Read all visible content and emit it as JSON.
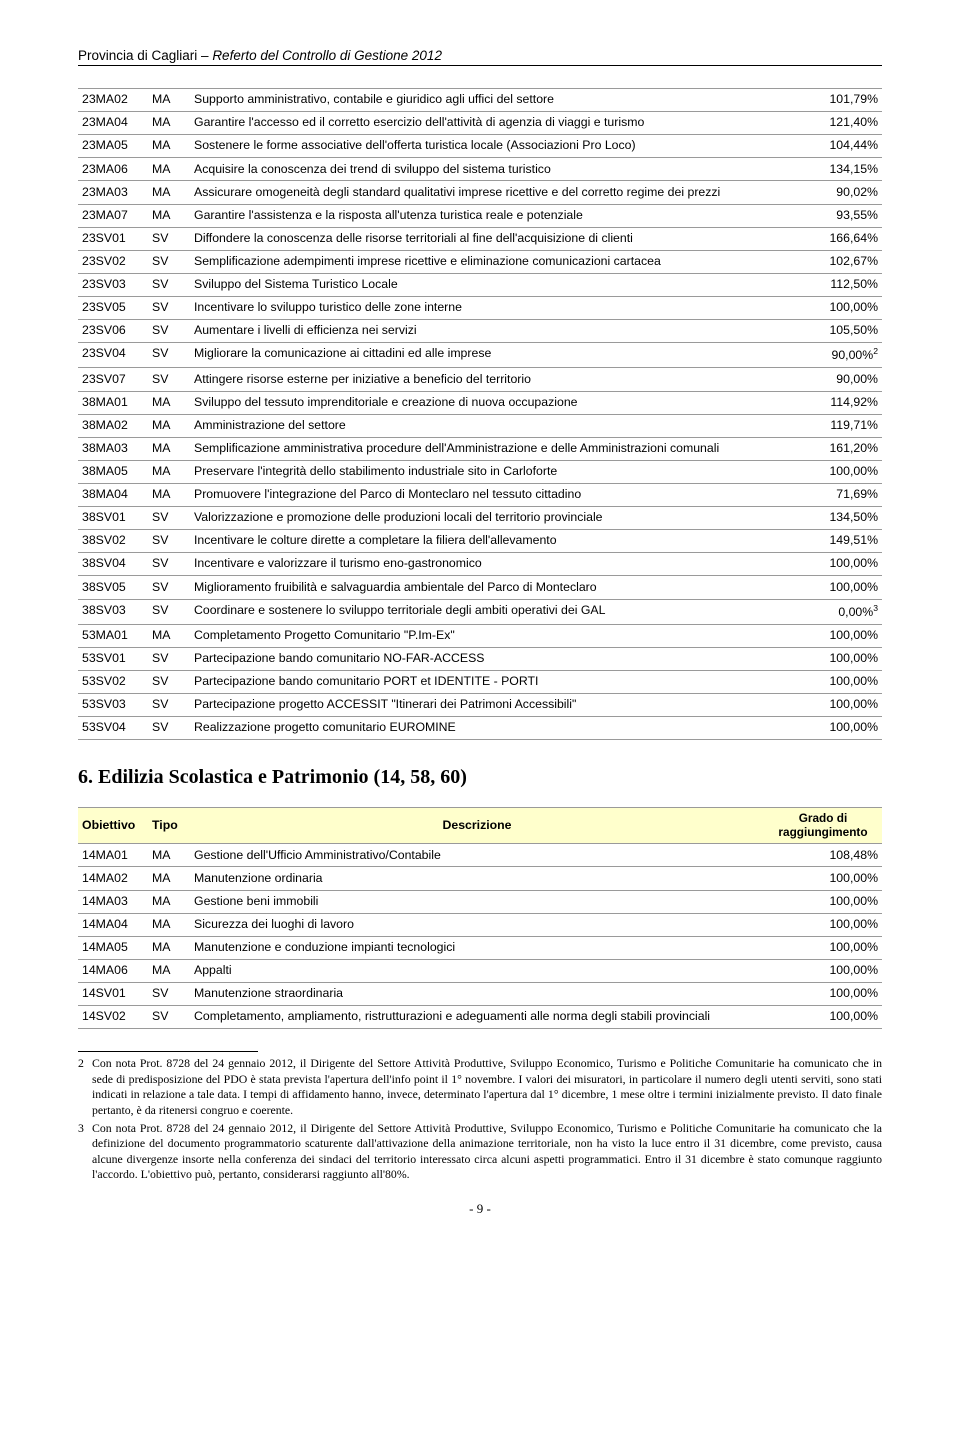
{
  "header": {
    "org": "Provincia di Cagliari – ",
    "title": "Referto del Controllo di Gestione 2012"
  },
  "table1": {
    "rows": [
      {
        "code": "23MA02",
        "tipo": "MA",
        "desc": "Supporto amministrativo, contabile e giuridico agli uffici del settore",
        "pct": "101,79%"
      },
      {
        "code": "23MA04",
        "tipo": "MA",
        "desc": "Garantire l'accesso ed il corretto esercizio dell'attività di agenzia di viaggi e turismo",
        "pct": "121,40%"
      },
      {
        "code": "23MA05",
        "tipo": "MA",
        "desc": "Sostenere le forme associative dell'offerta turistica locale (Associazioni Pro Loco)",
        "pct": "104,44%"
      },
      {
        "code": "23MA06",
        "tipo": "MA",
        "desc": "Acquisire la conoscenza dei trend di sviluppo del sistema turistico",
        "pct": "134,15%"
      },
      {
        "code": "23MA03",
        "tipo": "MA",
        "desc": "Assicurare omogeneità degli standard qualitativi imprese ricettive e del corretto regime dei prezzi",
        "pct": "90,02%"
      },
      {
        "code": "23MA07",
        "tipo": "MA",
        "desc": "Garantire l'assistenza e la risposta all'utenza turistica reale e potenziale",
        "pct": "93,55%"
      },
      {
        "code": "23SV01",
        "tipo": "SV",
        "desc": "Diffondere la conoscenza delle risorse territoriali al fine dell'acquisizione di clienti",
        "pct": "166,64%"
      },
      {
        "code": "23SV02",
        "tipo": "SV",
        "desc": "Semplificazione adempimenti imprese ricettive e eliminazione comunicazioni cartacea",
        "pct": "102,67%"
      },
      {
        "code": "23SV03",
        "tipo": "SV",
        "desc": "Sviluppo del Sistema Turistico Locale",
        "pct": "112,50%"
      },
      {
        "code": "23SV05",
        "tipo": "SV",
        "desc": "Incentivare lo sviluppo turistico delle zone interne",
        "pct": "100,00%"
      },
      {
        "code": "23SV06",
        "tipo": "SV",
        "desc": "Aumentare i livelli di efficienza nei servizi",
        "pct": "105,50%"
      },
      {
        "code": "23SV04",
        "tipo": "SV",
        "desc": "Migliorare la comunicazione ai cittadini ed alle imprese",
        "pct": "90,00%",
        "sup": "2"
      },
      {
        "code": "23SV07",
        "tipo": "SV",
        "desc": "Attingere risorse esterne per iniziative a beneficio del territorio",
        "pct": "90,00%"
      },
      {
        "code": "38MA01",
        "tipo": "MA",
        "desc": "Sviluppo del tessuto imprenditoriale e creazione di nuova occupazione",
        "pct": "114,92%"
      },
      {
        "code": "38MA02",
        "tipo": "MA",
        "desc": "Amministrazione del settore",
        "pct": "119,71%"
      },
      {
        "code": "38MA03",
        "tipo": "MA",
        "desc": "Semplificazione amministrativa procedure dell'Amministrazione e delle Amministrazioni comunali",
        "pct": "161,20%"
      },
      {
        "code": "38MA05",
        "tipo": "MA",
        "desc": "Preservare l'integrità dello stabilimento industriale sito in Carloforte",
        "pct": "100,00%"
      },
      {
        "code": "38MA04",
        "tipo": "MA",
        "desc": "Promuovere l'integrazione del Parco di Monteclaro nel tessuto cittadino",
        "pct": "71,69%"
      },
      {
        "code": "38SV01",
        "tipo": "SV",
        "desc": "Valorizzazione e promozione delle produzioni locali del territorio provinciale",
        "pct": "134,50%"
      },
      {
        "code": "38SV02",
        "tipo": "SV",
        "desc": "Incentivare le colture dirette a completare la filiera dell'allevamento",
        "pct": "149,51%"
      },
      {
        "code": "38SV04",
        "tipo": "SV",
        "desc": "Incentivare e valorizzare il turismo eno-gastronomico",
        "pct": "100,00%"
      },
      {
        "code": "38SV05",
        "tipo": "SV",
        "desc": "Miglioramento fruibilità e salvaguardia ambientale del Parco di Monteclaro",
        "pct": "100,00%"
      },
      {
        "code": "38SV03",
        "tipo": "SV",
        "desc": "Coordinare e sostenere lo sviluppo territoriale degli ambiti operativi dei GAL",
        "pct": "0,00%",
        "sup": "3"
      },
      {
        "code": "53MA01",
        "tipo": "MA",
        "desc": "Completamento Progetto Comunitario \"P.Im-Ex\"",
        "pct": "100,00%"
      },
      {
        "code": "53SV01",
        "tipo": "SV",
        "desc": "Partecipazione bando comunitario NO-FAR-ACCESS",
        "pct": "100,00%"
      },
      {
        "code": "53SV02",
        "tipo": "SV",
        "desc": "Partecipazione bando comunitario PORT et IDENTITE - PORTI",
        "pct": "100,00%"
      },
      {
        "code": "53SV03",
        "tipo": "SV",
        "desc": "Partecipazione progetto ACCESSIT  \"Itinerari dei Patrimoni Accessibili\"",
        "pct": "100,00%"
      },
      {
        "code": "53SV04",
        "tipo": "SV",
        "desc": "Realizzazione progetto comunitario EUROMINE",
        "pct": "100,00%"
      }
    ]
  },
  "section_title": "6.     Edilizia Scolastica e Patrimonio (14, 58, 60)",
  "table2": {
    "headers": {
      "obj": "Obiettivo",
      "tipo": "Tipo",
      "desc": "Descrizione",
      "grado": "Grado di raggiungimento"
    },
    "rows": [
      {
        "code": "14MA01",
        "tipo": "MA",
        "desc": "Gestione dell'Ufficio Amministrativo/Contabile",
        "pct": "108,48%"
      },
      {
        "code": "14MA02",
        "tipo": "MA",
        "desc": "Manutenzione ordinaria",
        "pct": "100,00%"
      },
      {
        "code": "14MA03",
        "tipo": "MA",
        "desc": "Gestione beni immobili",
        "pct": "100,00%"
      },
      {
        "code": "14MA04",
        "tipo": "MA",
        "desc": "Sicurezza dei luoghi di lavoro",
        "pct": "100,00%"
      },
      {
        "code": "14MA05",
        "tipo": "MA",
        "desc": "Manutenzione e conduzione impianti tecnologici",
        "pct": "100,00%"
      },
      {
        "code": "14MA06",
        "tipo": "MA",
        "desc": "Appalti",
        "pct": "100,00%"
      },
      {
        "code": "14SV01",
        "tipo": "SV",
        "desc": "Manutenzione straordinaria",
        "pct": "100,00%"
      },
      {
        "code": "14SV02",
        "tipo": "SV",
        "desc": "Completamento, ampliamento, ristrutturazioni e adeguamenti alle norma degli stabili provinciali",
        "pct": "100,00%"
      }
    ]
  },
  "footnotes": [
    {
      "num": "2",
      "text": "Con nota Prot. 8728 del 24 gennaio 2012, il Dirigente del Settore Attività Produttive, Sviluppo Economico, Turismo e Politiche Comunitarie ha comunicato che in sede di predisposizione del PDO è stata prevista l'apertura dell'info point il 1° novembre. I valori dei misuratori, in particolare il numero degli utenti serviti, sono stati indicati in relazione a tale data. I tempi di affidamento hanno, invece, determinato l'apertura dal 1° dicembre, 1 mese oltre i termini inizialmente previsto. Il dato finale pertanto, è da ritenersi congruo e coerente."
    },
    {
      "num": "3",
      "text": "Con nota Prot. 8728 del 24 gennaio 2012, il Dirigente del Settore Attività Produttive, Sviluppo Economico, Turismo e Politiche Comunitarie ha comunicato che la definizione del documento programmatorio scaturente dall'attivazione della animazione territoriale, non ha visto la luce entro il 31 dicembre, come previsto, causa alcune divergenze insorte nella conferenza dei sindaci del territorio interessato circa alcuni aspetti programmatici. Entro il 31 dicembre è stato comunque raggiunto l'accordo. L'obiettivo può, pertanto, considerarsi raggiunto all'80%."
    }
  ],
  "page_number": "- 9 -"
}
